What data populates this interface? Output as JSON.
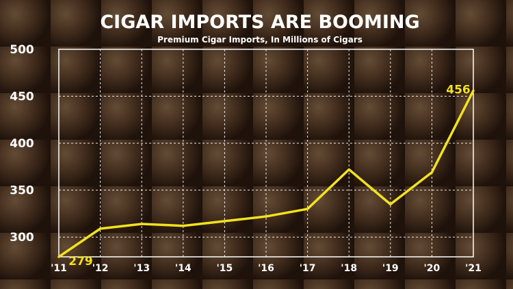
{
  "colors": {
    "line": "#f3e21c",
    "text": "#ffffff"
  },
  "chart_data": {
    "type": "line",
    "title": "CIGAR IMPORTS ARE BOOMING",
    "subtitle": "Premium Cigar Imports, In Millions of Cigars",
    "xlabel": "",
    "ylabel": "",
    "categories": [
      "'11",
      "'12",
      "'13",
      "'14",
      "'15",
      "'16",
      "'17",
      "'18",
      "'19",
      "'20",
      "'21"
    ],
    "series": [
      {
        "values": [
          279,
          309,
          314,
          312,
          317,
          322,
          330,
          372,
          335,
          369,
          456
        ]
      }
    ],
    "yticks": [
      300,
      350,
      400,
      450,
      500
    ],
    "ylim": [
      279,
      500
    ],
    "grid": true,
    "data_labels": [
      {
        "index": 0,
        "text": "279"
      },
      {
        "index": 10,
        "text": "456"
      }
    ]
  }
}
